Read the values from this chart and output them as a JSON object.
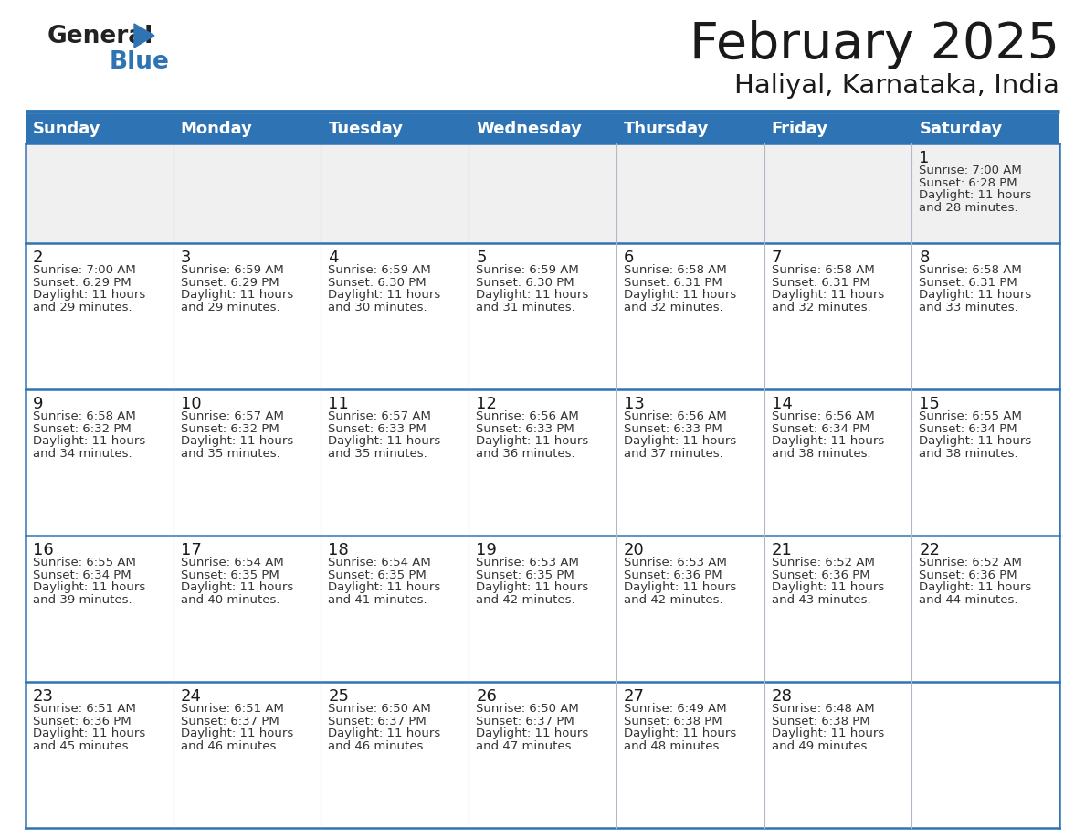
{
  "title": "February 2025",
  "subtitle": "Haliyal, Karnataka, India",
  "header_bg": "#2e74b5",
  "header_text_color": "#ffffff",
  "border_color": "#2e74b5",
  "text_color": "#333333",
  "day_headers": [
    "Sunday",
    "Monday",
    "Tuesday",
    "Wednesday",
    "Thursday",
    "Friday",
    "Saturday"
  ],
  "calendar_data": [
    [
      null,
      null,
      null,
      null,
      null,
      null,
      {
        "day": 1,
        "sunrise": "7:00 AM",
        "sunset": "6:28 PM",
        "daylight": "11 hours and 28 minutes."
      }
    ],
    [
      {
        "day": 2,
        "sunrise": "7:00 AM",
        "sunset": "6:29 PM",
        "daylight": "11 hours and 29 minutes."
      },
      {
        "day": 3,
        "sunrise": "6:59 AM",
        "sunset": "6:29 PM",
        "daylight": "11 hours and 29 minutes."
      },
      {
        "day": 4,
        "sunrise": "6:59 AM",
        "sunset": "6:30 PM",
        "daylight": "11 hours and 30 minutes."
      },
      {
        "day": 5,
        "sunrise": "6:59 AM",
        "sunset": "6:30 PM",
        "daylight": "11 hours and 31 minutes."
      },
      {
        "day": 6,
        "sunrise": "6:58 AM",
        "sunset": "6:31 PM",
        "daylight": "11 hours and 32 minutes."
      },
      {
        "day": 7,
        "sunrise": "6:58 AM",
        "sunset": "6:31 PM",
        "daylight": "11 hours and 32 minutes."
      },
      {
        "day": 8,
        "sunrise": "6:58 AM",
        "sunset": "6:31 PM",
        "daylight": "11 hours and 33 minutes."
      }
    ],
    [
      {
        "day": 9,
        "sunrise": "6:58 AM",
        "sunset": "6:32 PM",
        "daylight": "11 hours and 34 minutes."
      },
      {
        "day": 10,
        "sunrise": "6:57 AM",
        "sunset": "6:32 PM",
        "daylight": "11 hours and 35 minutes."
      },
      {
        "day": 11,
        "sunrise": "6:57 AM",
        "sunset": "6:33 PM",
        "daylight": "11 hours and 35 minutes."
      },
      {
        "day": 12,
        "sunrise": "6:56 AM",
        "sunset": "6:33 PM",
        "daylight": "11 hours and 36 minutes."
      },
      {
        "day": 13,
        "sunrise": "6:56 AM",
        "sunset": "6:33 PM",
        "daylight": "11 hours and 37 minutes."
      },
      {
        "day": 14,
        "sunrise": "6:56 AM",
        "sunset": "6:34 PM",
        "daylight": "11 hours and 38 minutes."
      },
      {
        "day": 15,
        "sunrise": "6:55 AM",
        "sunset": "6:34 PM",
        "daylight": "11 hours and 38 minutes."
      }
    ],
    [
      {
        "day": 16,
        "sunrise": "6:55 AM",
        "sunset": "6:34 PM",
        "daylight": "11 hours and 39 minutes."
      },
      {
        "day": 17,
        "sunrise": "6:54 AM",
        "sunset": "6:35 PM",
        "daylight": "11 hours and 40 minutes."
      },
      {
        "day": 18,
        "sunrise": "6:54 AM",
        "sunset": "6:35 PM",
        "daylight": "11 hours and 41 minutes."
      },
      {
        "day": 19,
        "sunrise": "6:53 AM",
        "sunset": "6:35 PM",
        "daylight": "11 hours and 42 minutes."
      },
      {
        "day": 20,
        "sunrise": "6:53 AM",
        "sunset": "6:36 PM",
        "daylight": "11 hours and 42 minutes."
      },
      {
        "day": 21,
        "sunrise": "6:52 AM",
        "sunset": "6:36 PM",
        "daylight": "11 hours and 43 minutes."
      },
      {
        "day": 22,
        "sunrise": "6:52 AM",
        "sunset": "6:36 PM",
        "daylight": "11 hours and 44 minutes."
      }
    ],
    [
      {
        "day": 23,
        "sunrise": "6:51 AM",
        "sunset": "6:36 PM",
        "daylight": "11 hours and 45 minutes."
      },
      {
        "day": 24,
        "sunrise": "6:51 AM",
        "sunset": "6:37 PM",
        "daylight": "11 hours and 46 minutes."
      },
      {
        "day": 25,
        "sunrise": "6:50 AM",
        "sunset": "6:37 PM",
        "daylight": "11 hours and 46 minutes."
      },
      {
        "day": 26,
        "sunrise": "6:50 AM",
        "sunset": "6:37 PM",
        "daylight": "11 hours and 47 minutes."
      },
      {
        "day": 27,
        "sunrise": "6:49 AM",
        "sunset": "6:38 PM",
        "daylight": "11 hours and 48 minutes."
      },
      {
        "day": 28,
        "sunrise": "6:48 AM",
        "sunset": "6:38 PM",
        "daylight": "11 hours and 49 minutes."
      },
      null
    ]
  ],
  "fig_width": 11.88,
  "fig_height": 9.18,
  "dpi": 100
}
